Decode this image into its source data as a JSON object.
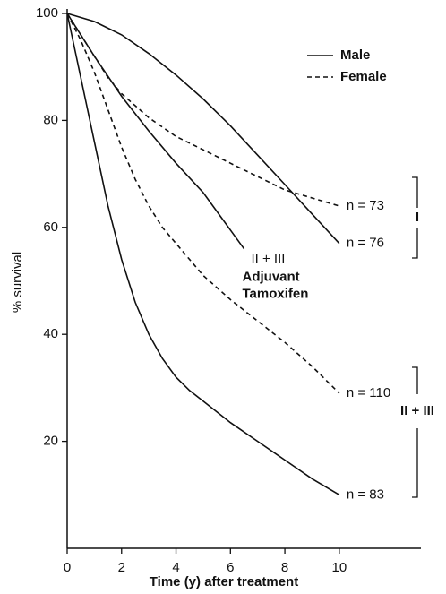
{
  "chart_data": {
    "type": "line",
    "xlabel": "Time (y) after treatment",
    "ylabel": "% survival",
    "xlim": [
      0,
      13
    ],
    "ylim": [
      0,
      100
    ],
    "xticks": [
      0,
      2,
      4,
      6,
      8,
      10
    ],
    "yticks": [
      20,
      40,
      60,
      80,
      100
    ],
    "legend": [
      {
        "name": "Male",
        "style": "solid"
      },
      {
        "name": "Female",
        "style": "dashed"
      }
    ],
    "series": [
      {
        "style": "solid",
        "color": "#111111",
        "label": "n = 76",
        "x": [
          0,
          1,
          2,
          3,
          4,
          5,
          6,
          7,
          8,
          9,
          10
        ],
        "values": [
          100,
          98.5,
          96,
          92.5,
          88.5,
          84,
          79,
          73.5,
          68,
          62.5,
          57
        ]
      },
      {
        "style": "dashed",
        "color": "#111111",
        "label": "n = 73",
        "x": [
          0,
          0.5,
          1,
          1.5,
          2,
          3,
          4,
          5,
          6,
          7,
          8,
          9,
          10
        ],
        "values": [
          100,
          96,
          92,
          88,
          85,
          80.5,
          77,
          74.5,
          72,
          69.5,
          67,
          65.5,
          64
        ]
      },
      {
        "style": "solid",
        "color": "#111111",
        "label": "II + III",
        "x": [
          0,
          1,
          2,
          3,
          4,
          5,
          6,
          6.5
        ],
        "values": [
          100,
          92,
          84.5,
          78,
          72,
          66.5,
          59.5,
          56
        ]
      },
      {
        "style": "dashed",
        "color": "#111111",
        "label": "n = 110",
        "x": [
          0,
          0.5,
          1,
          1.5,
          2,
          2.5,
          3,
          3.5,
          4,
          5,
          6,
          7,
          8,
          9,
          10
        ],
        "values": [
          100,
          95,
          89,
          82,
          75,
          69,
          64,
          60,
          57,
          51,
          46.5,
          42.5,
          38.5,
          34,
          29
        ]
      },
      {
        "style": "solid",
        "color": "#111111",
        "label": "n = 83",
        "x": [
          0,
          0.5,
          1,
          1.5,
          2,
          2.5,
          3,
          3.5,
          4,
          4.5,
          5,
          6,
          7,
          8,
          9,
          10
        ],
        "values": [
          100,
          88,
          76,
          64,
          54,
          46,
          40,
          35.5,
          32,
          29.5,
          27.5,
          23.5,
          20,
          16.5,
          13,
          10
        ]
      }
    ],
    "annotations": [
      "Adjuvant",
      "Tamoxifen"
    ],
    "groups": [
      "I",
      "II + III"
    ]
  }
}
